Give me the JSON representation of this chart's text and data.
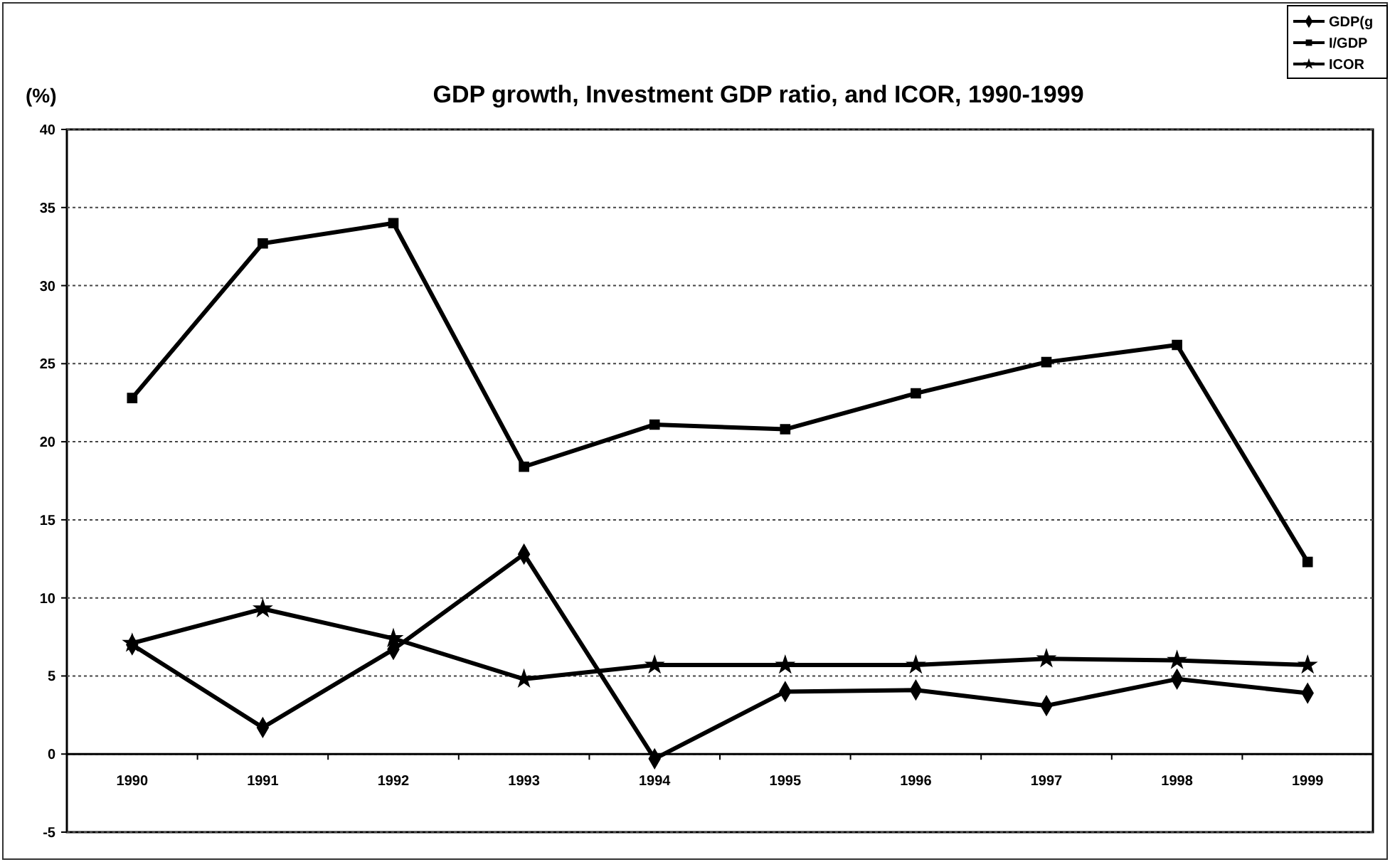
{
  "chart_data": {
    "type": "line",
    "title": "GDP growth, Investment GDP ratio, and ICOR, 1990-1999",
    "ylabel": "(%)",
    "categories": [
      "1990",
      "1991",
      "1992",
      "1993",
      "1994",
      "1995",
      "1996",
      "1997",
      "1998",
      "1999"
    ],
    "series": [
      {
        "name": "GDP(g",
        "color": "#000000",
        "marker": "diamond",
        "values": [
          7.0,
          1.7,
          6.7,
          12.8,
          -0.3,
          4.0,
          4.1,
          3.1,
          4.8,
          3.9
        ]
      },
      {
        "name": "I/GDP",
        "color": "#000000",
        "marker": "square",
        "values": [
          22.8,
          32.7,
          34.0,
          18.4,
          21.1,
          20.8,
          23.1,
          25.1,
          26.2,
          12.3
        ]
      },
      {
        "name": "ICOR",
        "color": "#000000",
        "marker": "star",
        "values": [
          7.1,
          9.3,
          7.4,
          4.8,
          5.7,
          5.7,
          5.7,
          6.1,
          6.0,
          5.7
        ]
      }
    ],
    "ylim": [
      -5,
      40
    ],
    "yticks": [
      -5,
      0,
      5,
      10,
      15,
      20,
      25,
      30,
      35,
      40
    ],
    "grid": "y",
    "legend": "top right",
    "line_style": "solid"
  }
}
